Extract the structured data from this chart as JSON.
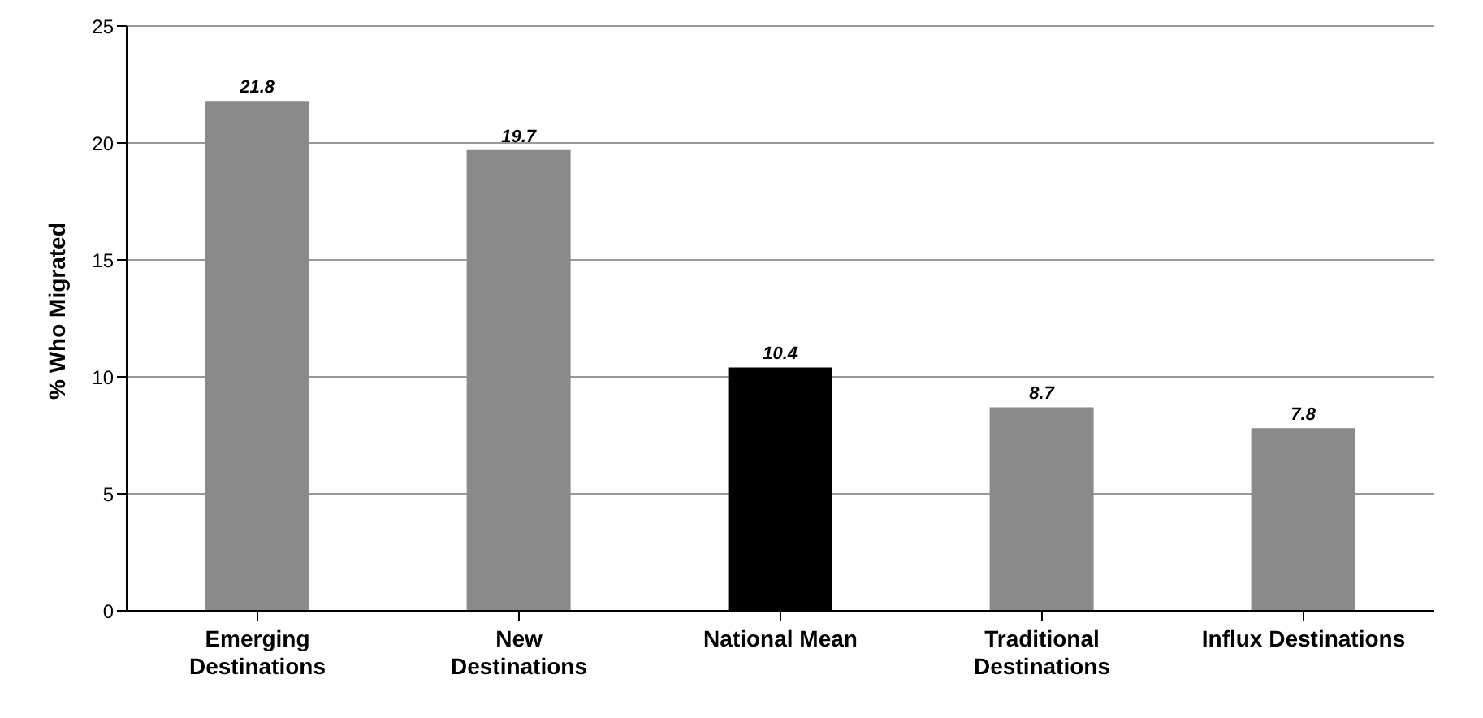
{
  "chart_data": {
    "type": "bar",
    "ylabel": "% Who Migrated",
    "categories": [
      "Emerging\nDestinations",
      "New\nDestinations",
      "National Mean",
      "Traditional\nDestinations",
      "Influx Destinations"
    ],
    "values": [
      21.8,
      19.7,
      10.4,
      8.7,
      7.8
    ],
    "colors": [
      "#8a8a8a",
      "#8a8a8a",
      "#000000",
      "#8a8a8a",
      "#8a8a8a"
    ],
    "ylim": [
      0,
      25
    ],
    "yticks": [
      0,
      5,
      10,
      15,
      20,
      25
    ],
    "grid": "y",
    "data_labels": true
  }
}
